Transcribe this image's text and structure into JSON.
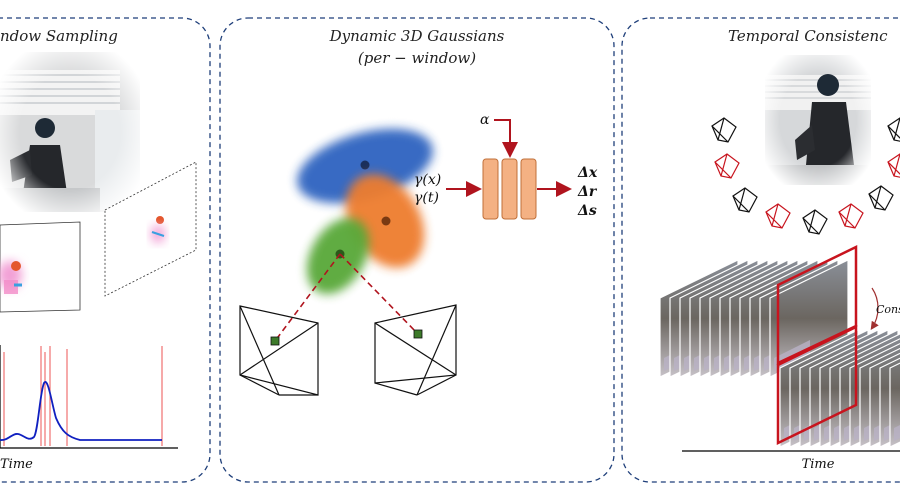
{
  "panels": {
    "left": {
      "title": "ndow Sampling",
      "time_label": "Time"
    },
    "middle": {
      "title_line1": "Dynamic 3D Gaussians",
      "title_line2": "(per − window)",
      "input_x": "γ(x)",
      "input_t": "γ(t)",
      "alpha": "α",
      "out_x": "Δx",
      "out_r": "Δr",
      "out_s": "Δs"
    },
    "right": {
      "title": "Temporal Consistenc",
      "consistency_label": "Cons",
      "time_label": "Time"
    }
  },
  "colors": {
    "panel_border": "#1f3f7a",
    "gaussian_blue": "#2f63c0",
    "gaussian_orange": "#ee7d2e",
    "gaussian_green": "#59a838",
    "mlp_fill": "#f4b183",
    "mlp_stroke": "#c0703a",
    "arrow_red": "#b0141e",
    "curve_blue": "#1020c0",
    "marker_red": "#f07070"
  }
}
